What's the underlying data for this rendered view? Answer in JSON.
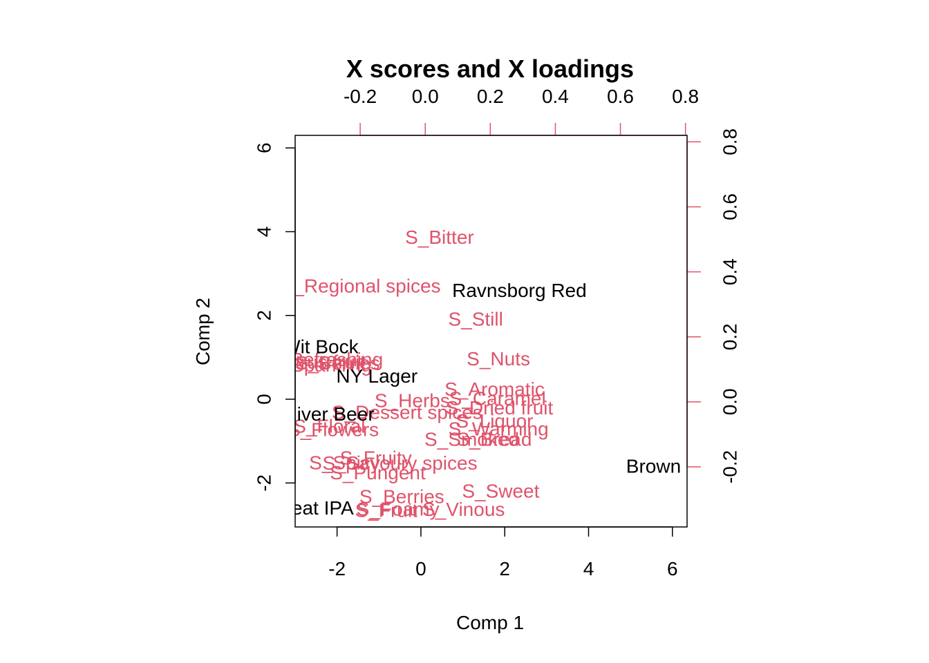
{
  "chart_data": {
    "type": "scatter",
    "title": "X scores and X loadings",
    "xlabel": "Comp 1",
    "ylabel": "Comp 2",
    "colors": {
      "scores": "#000000",
      "loadings": "#DF536B",
      "axis": "#000000"
    },
    "score_axes": {
      "xlim": [
        -3.0,
        6.35
      ],
      "ylim": [
        -3.05,
        6.3
      ],
      "xticks": [
        -2,
        0,
        2,
        4,
        6
      ],
      "yticks": [
        -2,
        0,
        2,
        4,
        6
      ],
      "xtick_labels": [
        "-2",
        "0",
        "2",
        "4",
        "6"
      ],
      "ytick_labels": [
        "-2",
        "0",
        "2",
        "4",
        "6"
      ]
    },
    "loading_axes": {
      "xlim": [
        -0.4,
        0.805
      ],
      "ylim": [
        -0.385,
        0.82
      ],
      "xticks": [
        -0.2,
        0.0,
        0.2,
        0.4,
        0.6,
        0.8
      ],
      "yticks": [
        -0.2,
        0.0,
        0.2,
        0.4,
        0.6,
        0.8
      ],
      "xtick_labels": [
        "-0.2",
        "0.0",
        "0.2",
        "0.4",
        "0.6",
        "0.8"
      ],
      "ytick_labels": [
        "-0.2",
        "0.0",
        "0.2",
        "0.4",
        "0.6",
        "0.8"
      ]
    },
    "scores": [
      {
        "label": "Ravnsborg Red",
        "x": 2.35,
        "y": 2.6
      },
      {
        "label": "Brown",
        "x": 5.55,
        "y": -1.6
      },
      {
        "label": "Wit Bock",
        "x": -2.4,
        "y": 1.25
      },
      {
        "label": "NY Lager",
        "x": -1.05,
        "y": 0.55
      },
      {
        "label": "River Beer",
        "x": -2.2,
        "y": -0.35
      },
      {
        "label": "Great IPA",
        "x": -2.6,
        "y": -2.6
      }
    ],
    "loadings": [
      {
        "label": "S_Bitter",
        "x": 0.044,
        "y": 0.506
      },
      {
        "label": "S_Regional spices",
        "x": -0.199,
        "y": 0.357
      },
      {
        "label": "S_Still",
        "x": 0.155,
        "y": 0.255
      },
      {
        "label": "S_Nuts",
        "x": 0.225,
        "y": 0.132
      },
      {
        "label": "S_Refreshing",
        "x": -0.31,
        "y": 0.13
      },
      {
        "label": "S_Berries",
        "x": -0.27,
        "y": 0.12
      },
      {
        "label": "S_Sparkling",
        "x": -0.325,
        "y": 0.113
      },
      {
        "label": "S_Citrus fruit",
        "x": -0.357,
        "y": 0.123
      },
      {
        "label": "S_Aromatic",
        "x": 0.213,
        "y": 0.039
      },
      {
        "label": "S_Herbs",
        "x": -0.04,
        "y": 0.004
      },
      {
        "label": "S_Caramel",
        "x": 0.222,
        "y": 0.01
      },
      {
        "label": "S_Dried fruit",
        "x": 0.228,
        "y": -0.018
      },
      {
        "label": "S_Dessert spices",
        "x": -0.056,
        "y": -0.032
      },
      {
        "label": "S_Liquor",
        "x": 0.213,
        "y": -0.059
      },
      {
        "label": "S_Warming",
        "x": 0.225,
        "y": -0.083
      },
      {
        "label": "S_Smoked",
        "x": 0.143,
        "y": -0.115
      },
      {
        "label": "S_Bread",
        "x": 0.212,
        "y": -0.115
      },
      {
        "label": "S_Floral",
        "x": -0.295,
        "y": -0.075
      },
      {
        "label": "S_Flowers",
        "x": -0.283,
        "y": -0.085
      },
      {
        "label": "S_Fruity",
        "x": -0.152,
        "y": -0.172
      },
      {
        "label": "S_Savoury spices",
        "x": -0.078,
        "y": -0.188
      },
      {
        "label": "S_Spicy",
        "x": -0.248,
        "y": -0.187
      },
      {
        "label": "S_Pungent",
        "x": -0.146,
        "y": -0.218
      },
      {
        "label": "S_Sweet",
        "x": 0.232,
        "y": -0.274
      },
      {
        "label": "S_Berries",
        "x": -0.072,
        "y": -0.292
      },
      {
        "label": "S_Vinous",
        "x": 0.118,
        "y": -0.331
      },
      {
        "label": "S_Foamy",
        "x": -0.084,
        "y": -0.33
      },
      {
        "label": "S_Fruit",
        "x": -0.12,
        "y": -0.334
      }
    ]
  }
}
